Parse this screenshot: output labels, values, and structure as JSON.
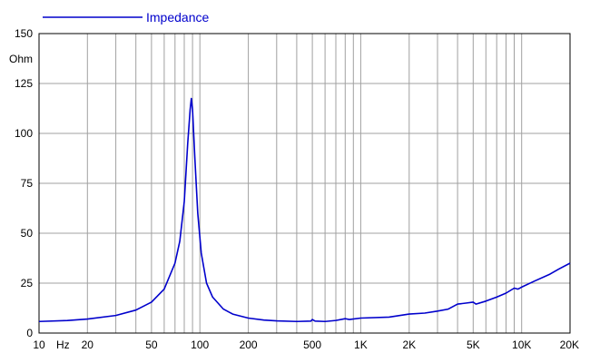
{
  "chart_data": {
    "type": "line",
    "x_scale": "log",
    "xlim": [
      10,
      20000
    ],
    "ylim": [
      0,
      150
    ],
    "grid": true,
    "ylabel": "Ohm",
    "xlabel": "Hz",
    "legend_position": "top-left",
    "x_ticks": [
      "10",
      "20",
      "50",
      "100",
      "200",
      "500",
      "1K",
      "2K",
      "5K",
      "10K",
      "20K"
    ],
    "y_ticks": [
      "0",
      "25",
      "50",
      "75",
      "100",
      "125",
      "150"
    ],
    "series": [
      {
        "name": "Impedance",
        "color": "#0000cc",
        "points": [
          [
            10,
            5.8
          ],
          [
            15,
            6.3
          ],
          [
            20,
            7.0
          ],
          [
            30,
            8.8
          ],
          [
            40,
            11.5
          ],
          [
            50,
            15.5
          ],
          [
            60,
            22
          ],
          [
            70,
            35
          ],
          [
            75,
            46
          ],
          [
            80,
            66
          ],
          [
            84,
            95
          ],
          [
            87,
            112
          ],
          [
            88.5,
            117.5
          ],
          [
            90,
            112
          ],
          [
            93,
            88
          ],
          [
            97,
            60
          ],
          [
            102,
            40
          ],
          [
            110,
            25
          ],
          [
            120,
            18
          ],
          [
            140,
            12
          ],
          [
            160,
            9.5
          ],
          [
            200,
            7.5
          ],
          [
            250,
            6.5
          ],
          [
            300,
            6.1
          ],
          [
            400,
            5.8
          ],
          [
            490,
            6.0
          ],
          [
            500,
            6.8
          ],
          [
            520,
            6.0
          ],
          [
            600,
            5.8
          ],
          [
            700,
            6.3
          ],
          [
            800,
            7.2
          ],
          [
            850,
            6.8
          ],
          [
            1000,
            7.5
          ],
          [
            1500,
            8.0
          ],
          [
            2000,
            9.5
          ],
          [
            2500,
            10.0
          ],
          [
            3000,
            11.0
          ],
          [
            3500,
            12.0
          ],
          [
            4000,
            14.5
          ],
          [
            4500,
            15.0
          ],
          [
            5000,
            15.5
          ],
          [
            5200,
            14.5
          ],
          [
            6000,
            16.0
          ],
          [
            7000,
            18.0
          ],
          [
            8000,
            20.0
          ],
          [
            9000,
            22.5
          ],
          [
            9500,
            22.0
          ],
          [
            10000,
            23.0
          ],
          [
            12000,
            26.0
          ],
          [
            15000,
            29.5
          ],
          [
            17000,
            32.0
          ],
          [
            20000,
            35.0
          ]
        ]
      }
    ]
  }
}
